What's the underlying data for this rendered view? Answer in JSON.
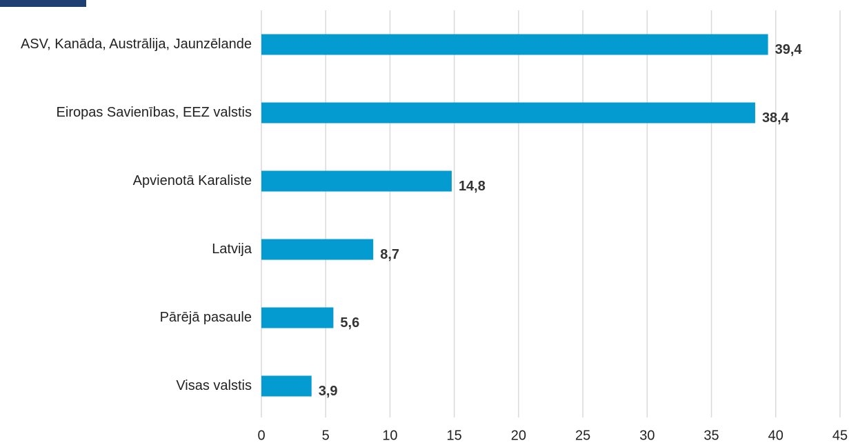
{
  "chart_data": {
    "type": "bar",
    "orientation": "horizontal",
    "categories": [
      "ASV, Kanāda, Austrālija, Jaunzēlande",
      "Eiropas Savienības, EEZ valstis",
      "Apvienotā Karaliste",
      "Latvija",
      "Pārējā pasaule",
      "Visas valstis"
    ],
    "values": [
      39.4,
      38.4,
      14.8,
      8.7,
      5.6,
      3.9
    ],
    "value_labels": [
      "39,4",
      "38,4",
      "14,8",
      "8,7",
      "5,6",
      "3,9"
    ],
    "color": "#039bd0",
    "xlim": [
      0,
      45
    ],
    "xticks": [
      0,
      5,
      10,
      15,
      20,
      25,
      30,
      35,
      40,
      45
    ],
    "grid": true
  }
}
